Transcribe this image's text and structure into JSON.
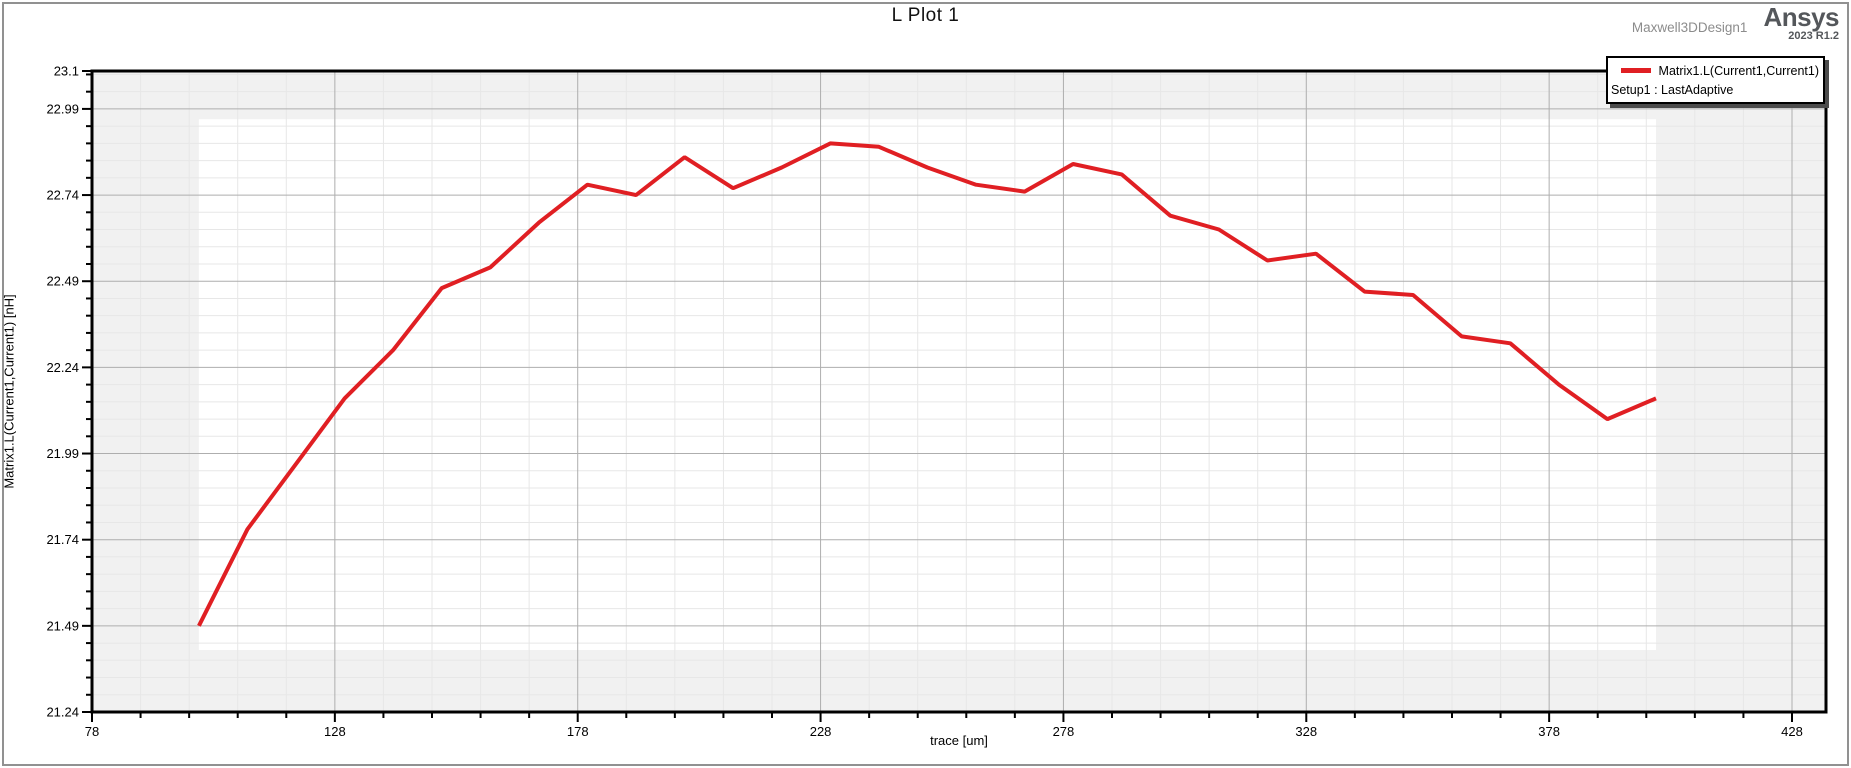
{
  "header": {
    "title": "L Plot 1",
    "design_name": "Maxwell3DDesign1",
    "brand_name": "Ansys",
    "brand_version": "2023 R1.2"
  },
  "legend": {
    "series_label": "Matrix1.L(Current1,Current1)",
    "setup_label": "Setup1 : LastAdaptive"
  },
  "colors": {
    "series_red": "#e01f23",
    "plot_margin_gray": "#f1f1f1",
    "data_region_white": "#ffffff",
    "grid_minor": "#e7e7e7",
    "grid_major": "#aeaeae",
    "axis_black": "#000000"
  },
  "chart_data": {
    "type": "line",
    "title": "L Plot 1",
    "xlabel": "trace [um]",
    "ylabel": "Matrix1.L(Current1,Current1) [nH]",
    "xlim": [
      78,
      435
    ],
    "ylim": [
      21.24,
      23.1
    ],
    "grid": true,
    "legend_position": "top-right",
    "x_major_ticks": {
      "values": [
        78,
        128,
        178,
        228,
        278,
        328,
        378,
        428
      ],
      "labels": [
        "78",
        "128",
        "178",
        "228",
        "278",
        "328",
        "378",
        "428"
      ]
    },
    "x_minor_step": 10,
    "y_major_ticks": {
      "values": [
        23.1,
        22.99,
        22.74,
        22.49,
        22.24,
        21.99,
        21.74,
        21.49,
        21.24
      ],
      "labels": [
        "23.1",
        "22.99",
        "22.74",
        "22.49",
        "22.24",
        "21.99",
        "21.74",
        "21.49",
        "21.24"
      ]
    },
    "y_minor_step": 0.05,
    "data_region": {
      "x": [
        100,
        400
      ],
      "y": [
        21.42,
        22.96
      ]
    },
    "series": [
      {
        "name": "Matrix1.L(Current1,Current1)",
        "setup": "Setup1 : LastAdaptive",
        "color": "#e01f23",
        "x": [
          100,
          110,
          120,
          130,
          140,
          150,
          160,
          170,
          180,
          190,
          200,
          210,
          220,
          230,
          240,
          250,
          260,
          270,
          280,
          290,
          300,
          310,
          320,
          330,
          340,
          350,
          360,
          370,
          380,
          390,
          400
        ],
        "y": [
          21.49,
          21.77,
          21.96,
          22.15,
          22.29,
          22.47,
          22.53,
          22.66,
          22.77,
          22.74,
          22.85,
          22.76,
          22.82,
          22.89,
          22.88,
          22.82,
          22.77,
          22.75,
          22.83,
          22.8,
          22.68,
          22.64,
          22.55,
          22.57,
          22.46,
          22.45,
          22.33,
          22.31,
          22.19,
          22.09,
          22.15
        ]
      }
    ]
  }
}
